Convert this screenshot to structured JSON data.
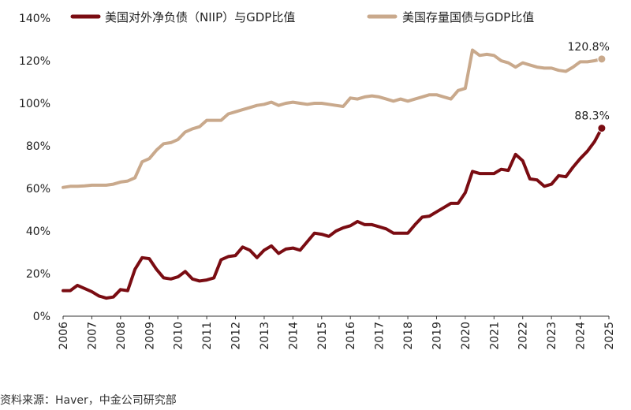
{
  "chart_data": {
    "type": "line",
    "ylim": [
      0,
      140
    ],
    "yticks": [
      0,
      20,
      40,
      60,
      80,
      100,
      120,
      140
    ],
    "ytick_labels": [
      "0%",
      "20%",
      "40%",
      "60%",
      "80%",
      "100%",
      "120%",
      "140%"
    ],
    "xlim": [
      2006,
      2025
    ],
    "xtick_labels": [
      "2006",
      "2007",
      "2008",
      "2009",
      "2010",
      "2011",
      "2012",
      "2013",
      "2014",
      "2015",
      "2016",
      "2017",
      "2018",
      "2019",
      "2020",
      "2021",
      "2022",
      "2023",
      "2024",
      "2025"
    ],
    "grid": false,
    "legend_position": "top",
    "series": [
      {
        "name": "美国对外净负债（NIIP）与GDP比值",
        "color": "#7a0c12",
        "x": [
          2006.0,
          2006.25,
          2006.5,
          2006.75,
          2007.0,
          2007.25,
          2007.5,
          2007.75,
          2008.0,
          2008.25,
          2008.5,
          2008.75,
          2009.0,
          2009.25,
          2009.5,
          2009.75,
          2010.0,
          2010.25,
          2010.5,
          2010.75,
          2011.0,
          2011.25,
          2011.5,
          2011.75,
          2012.0,
          2012.25,
          2012.5,
          2012.75,
          2013.0,
          2013.25,
          2013.5,
          2013.75,
          2014.0,
          2014.25,
          2014.5,
          2014.75,
          2015.0,
          2015.25,
          2015.5,
          2015.75,
          2016.0,
          2016.25,
          2016.5,
          2016.75,
          2017.0,
          2017.25,
          2017.5,
          2017.75,
          2018.0,
          2018.25,
          2018.5,
          2018.75,
          2019.0,
          2019.25,
          2019.5,
          2019.75,
          2020.0,
          2020.25,
          2020.5,
          2020.75,
          2021.0,
          2021.25,
          2021.5,
          2021.75,
          2022.0,
          2022.25,
          2022.5,
          2022.75,
          2023.0,
          2023.25,
          2023.5,
          2023.75,
          2024.0,
          2024.25,
          2024.5,
          2024.75
        ],
        "values": [
          12,
          12,
          14.5,
          13,
          11.5,
          9.5,
          8.5,
          9,
          12.5,
          12,
          22,
          27.5,
          27,
          22,
          18,
          17.5,
          18.5,
          21,
          17.5,
          16.5,
          17,
          18,
          26.5,
          28,
          28.5,
          32.5,
          31,
          27.5,
          31,
          33,
          29.5,
          31.5,
          32,
          31,
          35,
          39,
          38.5,
          37.5,
          40,
          41.5,
          42.5,
          44.5,
          43,
          43,
          42,
          41,
          39,
          39,
          39,
          43,
          46.5,
          47,
          49,
          51,
          53,
          53,
          58,
          68,
          67,
          67,
          67,
          69,
          68.5,
          76,
          73,
          64.5,
          64,
          61,
          62,
          66,
          65.5,
          70,
          74,
          77.5,
          82,
          88.3
        ]
      },
      {
        "name": "美国存量国债与GDP比值",
        "color": "#c9a98c",
        "x": [
          2006.0,
          2006.25,
          2006.5,
          2006.75,
          2007.0,
          2007.25,
          2007.5,
          2007.75,
          2008.0,
          2008.25,
          2008.5,
          2008.75,
          2009.0,
          2009.25,
          2009.5,
          2009.75,
          2010.0,
          2010.25,
          2010.5,
          2010.75,
          2011.0,
          2011.25,
          2011.5,
          2011.75,
          2012.0,
          2012.25,
          2012.5,
          2012.75,
          2013.0,
          2013.25,
          2013.5,
          2013.75,
          2014.0,
          2014.25,
          2014.5,
          2014.75,
          2015.0,
          2015.25,
          2015.5,
          2015.75,
          2016.0,
          2016.25,
          2016.5,
          2016.75,
          2017.0,
          2017.25,
          2017.5,
          2017.75,
          2018.0,
          2018.25,
          2018.5,
          2018.75,
          2019.0,
          2019.25,
          2019.5,
          2019.75,
          2020.0,
          2020.25,
          2020.5,
          2020.75,
          2021.0,
          2021.25,
          2021.5,
          2021.75,
          2022.0,
          2022.25,
          2022.5,
          2022.75,
          2023.0,
          2023.25,
          2023.5,
          2023.75,
          2024.0,
          2024.25,
          2024.5,
          2024.75
        ],
        "values": [
          60.5,
          61,
          61,
          61.2,
          61.5,
          61.5,
          61.5,
          62,
          63,
          63.5,
          65,
          72.5,
          74,
          78,
          81,
          81.5,
          83,
          86.5,
          88,
          89,
          92,
          92,
          92,
          95,
          96,
          97,
          98,
          99,
          99.5,
          100.5,
          99,
          100,
          100.5,
          100,
          99.5,
          100,
          100,
          99.5,
          99,
          98.5,
          102.5,
          102,
          103,
          103.5,
          103,
          102,
          101,
          102,
          101,
          102,
          103,
          104,
          104,
          103,
          102,
          106,
          107,
          125,
          122.5,
          123,
          122.5,
          120,
          119,
          117,
          119,
          118,
          117,
          116.5,
          116.5,
          115.5,
          115,
          117,
          119.5,
          119.5,
          120,
          120.8
        ]
      }
    ],
    "annotations": [
      {
        "text": "120.8%",
        "x": 2024.75,
        "y": 120.8,
        "series": 1
      },
      {
        "text": "88.3%",
        "x": 2024.75,
        "y": 88.3,
        "series": 0
      }
    ]
  },
  "source_text": "资料来源：Haver，中金公司研究部"
}
